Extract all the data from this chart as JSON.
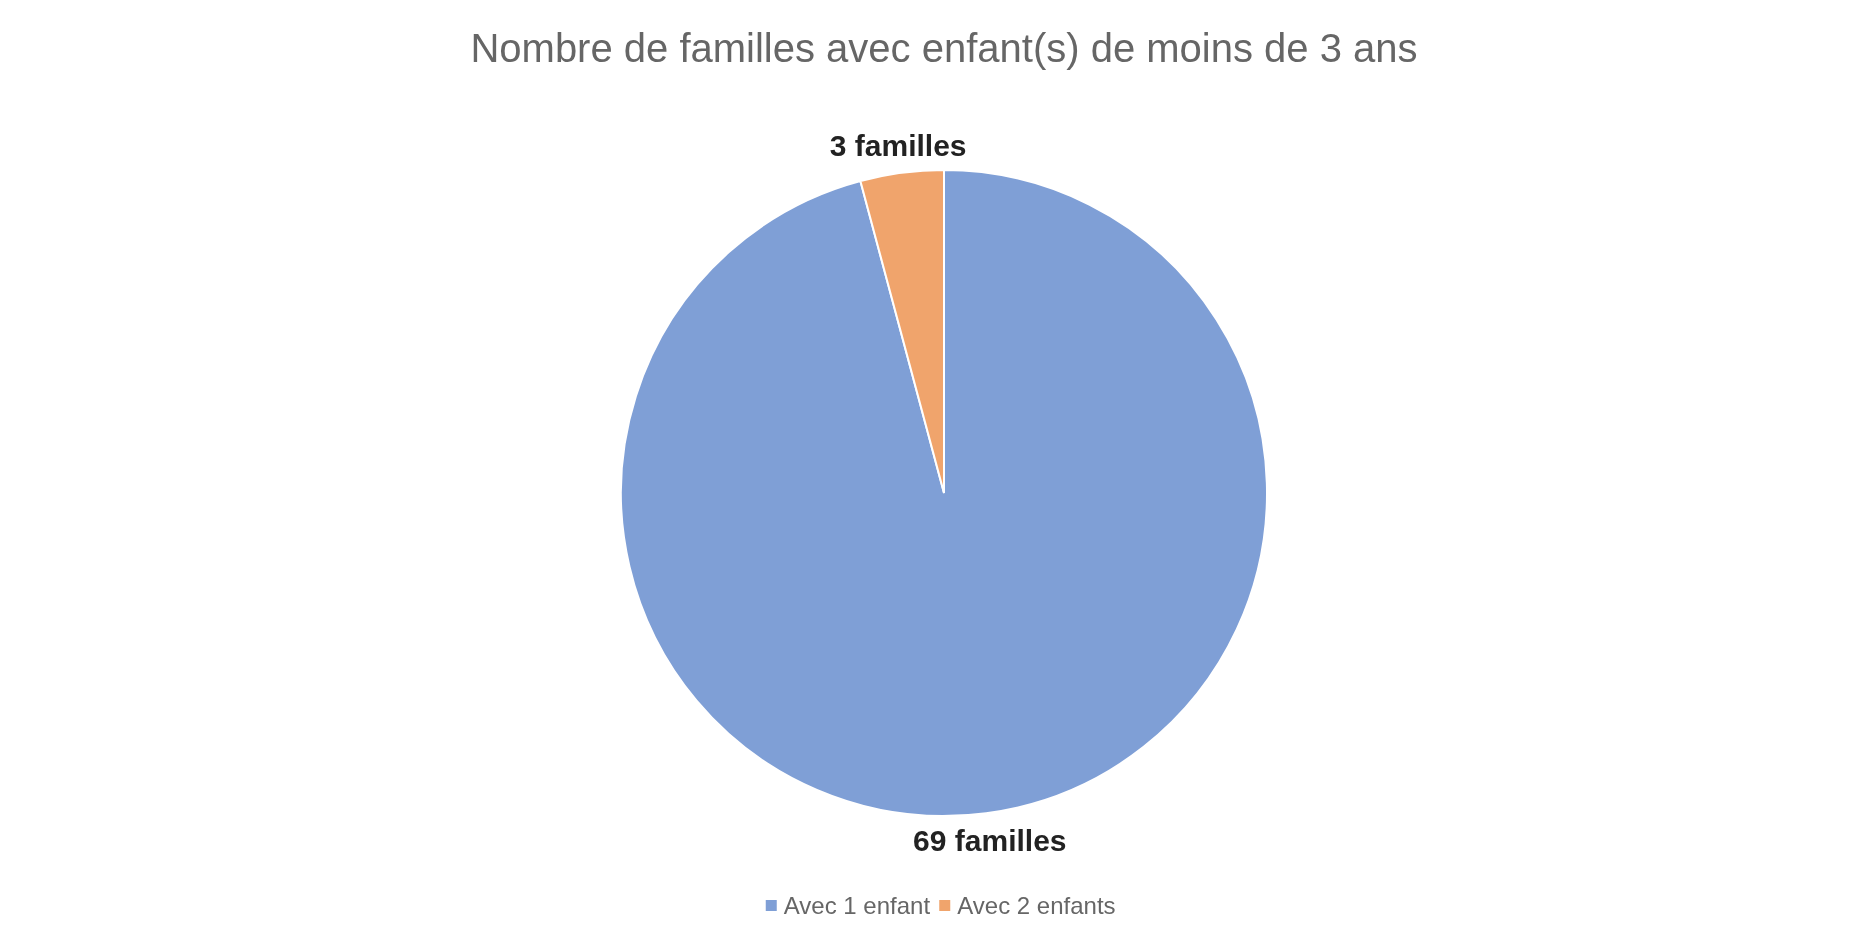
{
  "chart_data": {
    "type": "pie",
    "title": "Nombre de familles avec enfant(s) de moins de 3 ans",
    "categories": [
      "Avec 1 enfant",
      "Avec 2 enfants"
    ],
    "values": [
      69,
      3
    ],
    "colors": [
      "#7f9fd6",
      "#f0a46c"
    ],
    "value_labels": [
      "69 familles",
      "3 familles"
    ],
    "legend": "bottom"
  }
}
